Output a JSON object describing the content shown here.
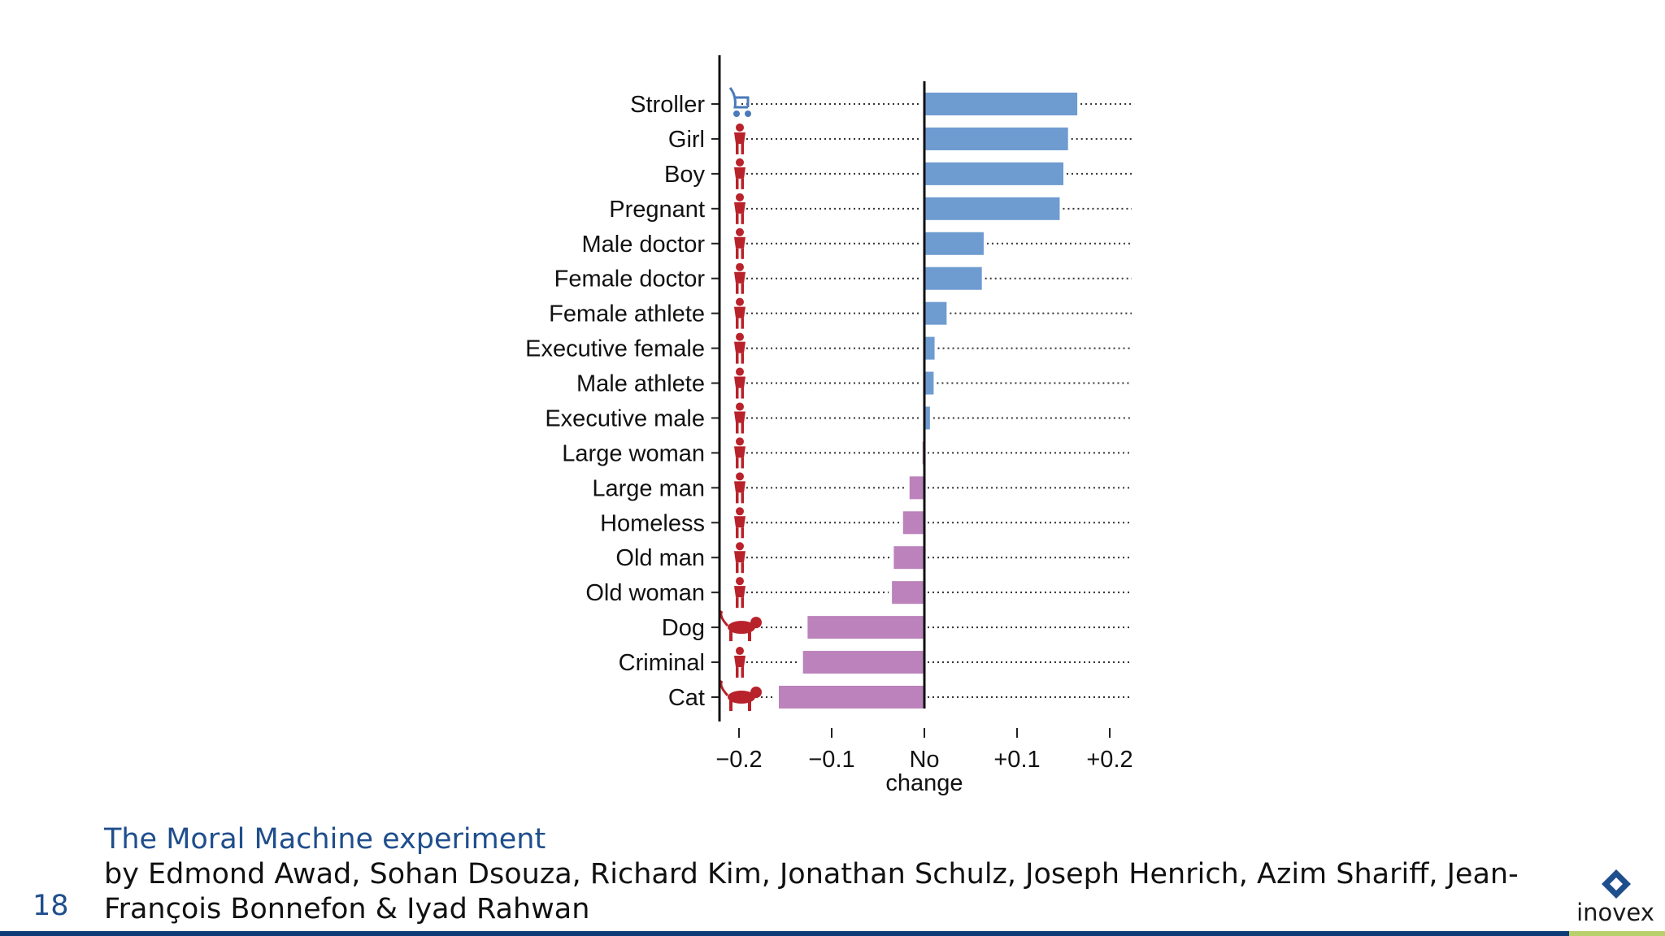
{
  "slide": {
    "page_number": "18",
    "caption_title": "The Moral Machine experiment",
    "caption_authors": "by Edmond Awad, Sohan Dsouza, Richard Kim, Jonathan Schulz, Joseph Henrich, Azim Shariff, Jean-François Bonnefon & Iyad Rahwan",
    "logo_text": "inovex",
    "colors": {
      "title": "#1f4e8c",
      "bottom_bar": "#0c3b75",
      "bottom_bar_accent": "#b9cf6c",
      "logo_mark": "#1f4e8c"
    }
  },
  "chart_data": {
    "type": "bar",
    "orientation": "horizontal",
    "categories": [
      "Stroller",
      "Girl",
      "Boy",
      "Pregnant",
      "Male doctor",
      "Female doctor",
      "Female athlete",
      "Executive female",
      "Male athlete",
      "Executive male",
      "Large woman",
      "Large man",
      "Homeless",
      "Old man",
      "Old woman",
      "Dog",
      "Criminal",
      "Cat"
    ],
    "values": [
      0.165,
      0.155,
      0.15,
      0.146,
      0.064,
      0.062,
      0.024,
      0.011,
      0.01,
      0.006,
      -0.002,
      -0.016,
      -0.023,
      -0.033,
      -0.035,
      -0.126,
      -0.131,
      -0.157
    ],
    "x_ticks": [
      "−0.2",
      "−0.1",
      "No\nchange",
      "+0.1",
      "+0.2"
    ],
    "x_tick_values": [
      -0.2,
      -0.1,
      0,
      0.1,
      0.2
    ],
    "xlim": [
      -0.22,
      0.22
    ],
    "colors": {
      "positive": "#6e9bd0",
      "negative": "#bb82bb",
      "icon_person": "#b8222a",
      "icon_stroller": "#4a7ab8"
    },
    "icons": [
      "stroller-icon",
      "girl-icon",
      "boy-icon",
      "pregnant-woman-icon",
      "male-doctor-icon",
      "female-doctor-icon",
      "female-athlete-icon",
      "executive-female-icon",
      "male-athlete-icon",
      "executive-male-icon",
      "large-woman-icon",
      "large-man-icon",
      "homeless-icon",
      "old-man-icon",
      "old-woman-icon",
      "dog-icon",
      "criminal-icon",
      "cat-icon"
    ],
    "grid": "dotted row guides",
    "title": "",
    "xlabel": "",
    "ylabel": ""
  }
}
